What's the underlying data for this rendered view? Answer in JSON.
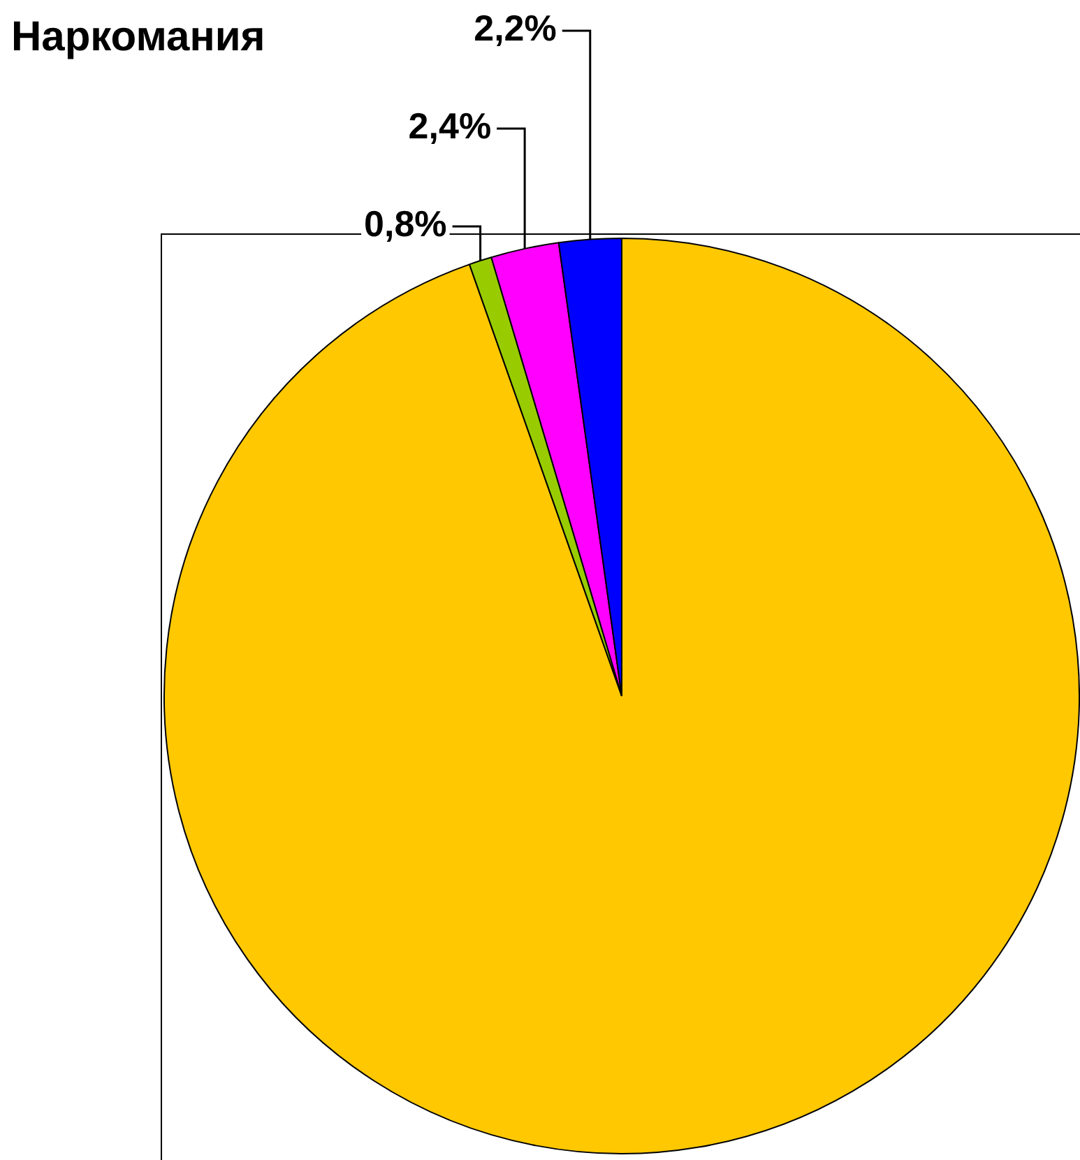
{
  "chart_data": {
    "type": "pie",
    "title": "Наркомания",
    "categories": [
      null,
      null,
      null,
      null
    ],
    "values": [
      94.6,
      0.8,
      2.4,
      2.2
    ],
    "colors": [
      "#ffc800",
      "#99cc00",
      "#ff00ff",
      "#0000ff"
    ],
    "value_labels": [
      null,
      "0,8%",
      "2,4%",
      "2,2%"
    ],
    "legend": false
  }
}
